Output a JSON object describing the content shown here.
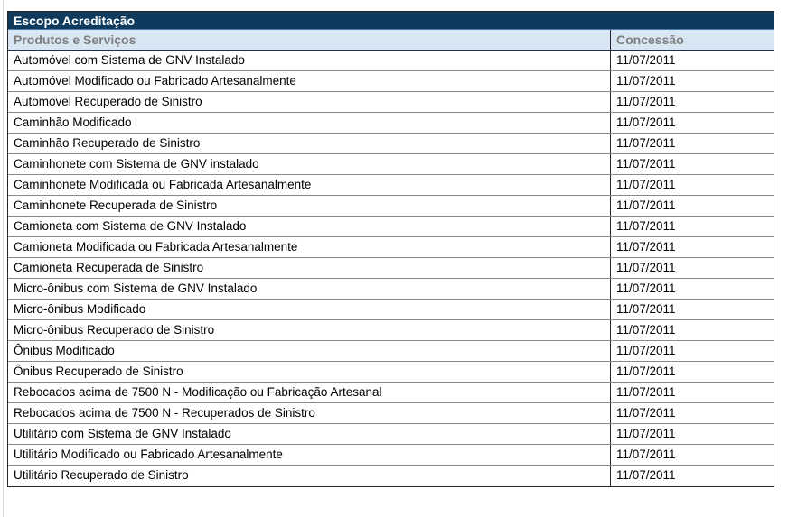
{
  "page": {
    "background": "#ffffff"
  },
  "table": {
    "title": "Escopo Acreditação",
    "columns": [
      "Produtos e Serviços",
      "Concessão"
    ],
    "rows": [
      {
        "product": "Automóvel com Sistema de GNV Instalado",
        "concession": "11/07/2011"
      },
      {
        "product": "Automóvel Modificado ou Fabricado Artesanalmente",
        "concession": "11/07/2011"
      },
      {
        "product": "Automóvel Recuperado de Sinistro",
        "concession": "11/07/2011"
      },
      {
        "product": "Caminhão Modificado",
        "concession": "11/07/2011"
      },
      {
        "product": "Caminhão Recuperado de Sinistro",
        "concession": "11/07/2011"
      },
      {
        "product": "Caminhonete com Sistema de GNV instalado",
        "concession": "11/07/2011"
      },
      {
        "product": "Caminhonete Modificada ou Fabricada Artesanalmente",
        "concession": "11/07/2011"
      },
      {
        "product": "Caminhonete Recuperada de Sinistro",
        "concession": "11/07/2011"
      },
      {
        "product": "Camioneta com Sistema de GNV Instalado",
        "concession": "11/07/2011"
      },
      {
        "product": "Camioneta Modificada ou Fabricada Artesanalmente",
        "concession": "11/07/2011"
      },
      {
        "product": "Camioneta Recuperada de Sinistro",
        "concession": "11/07/2011"
      },
      {
        "product": "Micro-ônibus com Sistema de GNV Instalado",
        "concession": "11/07/2011"
      },
      {
        "product": "Micro-ônibus Modificado",
        "concession": "11/07/2011"
      },
      {
        "product": "Micro-ônibus Recuperado de Sinistro",
        "concession": "11/07/2011"
      },
      {
        "product": "Ônibus Modificado",
        "concession": "11/07/2011"
      },
      {
        "product": "Ônibus Recuperado de Sinistro",
        "concession": "11/07/2011"
      },
      {
        "product": "Rebocados acima de 7500 N - Modificação ou Fabricação Artesanal",
        "concession": "11/07/2011"
      },
      {
        "product": "Rebocados acima de 7500 N - Recuperados de Sinistro",
        "concession": "11/07/2011"
      },
      {
        "product": "Utilitário com Sistema de GNV Instalado",
        "concession": "11/07/2011"
      },
      {
        "product": "Utilitário Modificado ou Fabricado Artesanalmente",
        "concession": "11/07/2011"
      },
      {
        "product": "Utilitário Recuperado de Sinistro",
        "concession": "11/07/2011"
      }
    ],
    "colors": {
      "title_bg": "#0e3a5e",
      "title_text": "#ffffff",
      "header_bg": "#d8e6f4",
      "header_text": "#808080",
      "row_bg": "#ffffff",
      "row_text": "#000000",
      "border_dark": "#262626",
      "border_light": "#8a8a8a"
    }
  }
}
